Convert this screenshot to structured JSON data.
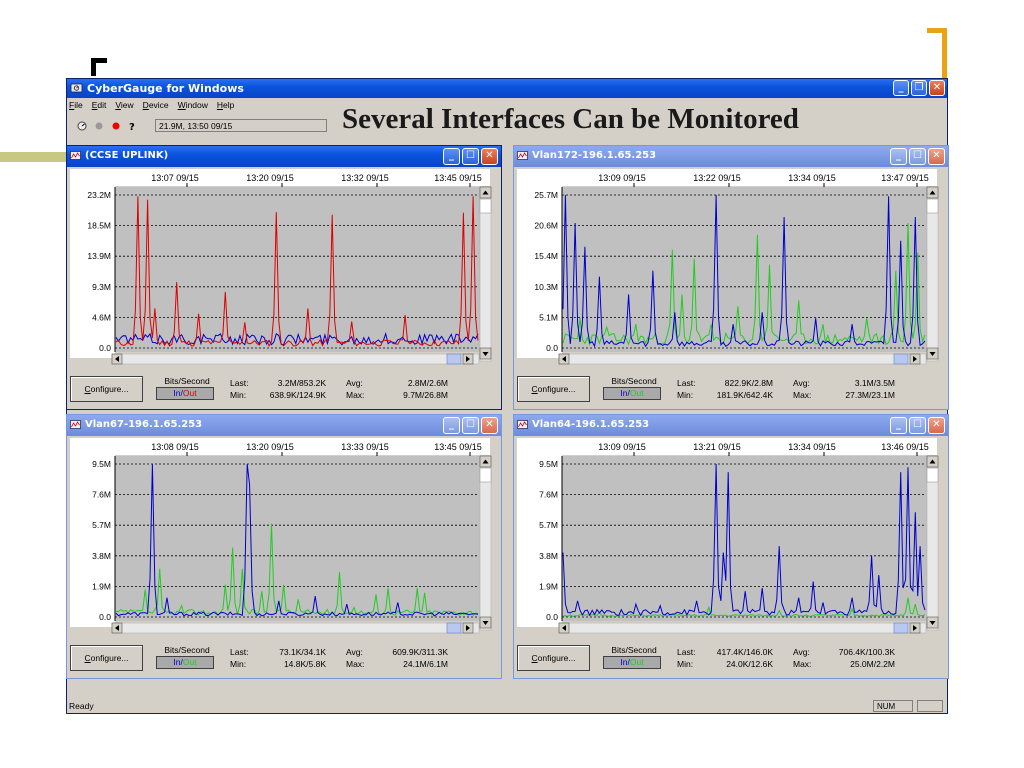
{
  "slide": {
    "headline": "Several Interfaces Can be Monitored",
    "deco_olive": "#c8c882",
    "deco_gold": "#e8a317"
  },
  "app": {
    "title": "CyberGauge for Windows",
    "menu": [
      "File",
      "Edit",
      "View",
      "Device",
      "Window",
      "Help"
    ],
    "toolbar_status": "21.9M, 13:50 09/15",
    "status_ready": "Ready",
    "status_num": "NUM"
  },
  "windows": [
    {
      "title": "(CCSE UPLINK)",
      "active": true,
      "times": [
        "13:07 09/15",
        "13:20 09/15",
        "13:32 09/15",
        "13:45 09/15"
      ],
      "yticks": [
        "23.2M",
        "18.5M",
        "13.9M",
        "9.3M",
        "4.6M",
        "0.0"
      ],
      "ymax": 23.2,
      "in_color": "#0000cc",
      "out_color": "#dd0000",
      "seed": 11,
      "in_spikes": [],
      "out_spikes": [
        [
          0.06,
          23.0
        ],
        [
          0.085,
          22.5
        ],
        [
          0.11,
          6.0
        ],
        [
          0.17,
          10.0
        ],
        [
          0.225,
          5.2
        ],
        [
          0.3,
          8.5
        ],
        [
          0.355,
          3.9
        ],
        [
          0.44,
          20.6
        ],
        [
          0.53,
          6.0
        ],
        [
          0.6,
          20.2
        ],
        [
          0.65,
          4.0
        ],
        [
          0.8,
          5.0
        ],
        [
          0.96,
          20.5
        ],
        [
          0.985,
          23.0
        ]
      ],
      "in_base": 1.4,
      "out_base": 0.8,
      "bits_label": "Bits/Second",
      "in_label": "In/",
      "out_label": "Out",
      "configure_label": "Configure...",
      "last_label": "Last:",
      "last_value": "3.2M/853.2K",
      "min_label": "Min:",
      "min_value": "638.9K/124.9K",
      "avg_label": "Avg:",
      "avg_value": "2.8M/2.6M",
      "max_label": "Max:",
      "max_value": "9.7M/26.8M"
    },
    {
      "title": "Vlan172-196.1.65.253",
      "active": false,
      "times": [
        "13:09 09/15",
        "13:22 09/15",
        "13:34 09/15",
        "13:47 09/15"
      ],
      "yticks": [
        "25.7M",
        "20.6M",
        "15.4M",
        "10.3M",
        "5.1M",
        "0.0"
      ],
      "ymax": 25.7,
      "in_color": "#0000cc",
      "out_color": "#22cc22",
      "seed": 23,
      "in_spikes": [
        [
          0.01,
          26.0
        ],
        [
          0.035,
          21.0
        ],
        [
          0.06,
          17.0
        ],
        [
          0.1,
          12.0
        ],
        [
          0.18,
          9.0
        ],
        [
          0.25,
          13.0
        ],
        [
          0.31,
          6.0
        ],
        [
          0.42,
          26.0
        ],
        [
          0.47,
          4.0
        ],
        [
          0.55,
          6.0
        ],
        [
          0.61,
          22.0
        ],
        [
          0.7,
          5.0
        ],
        [
          0.8,
          4.0
        ],
        [
          0.9,
          25.5
        ],
        [
          0.935,
          18.0
        ],
        [
          0.97,
          22.0
        ]
      ],
      "out_spikes": [
        [
          0.05,
          5.0
        ],
        [
          0.12,
          3.5
        ],
        [
          0.2,
          4.0
        ],
        [
          0.3,
          16.5
        ],
        [
          0.33,
          9.0
        ],
        [
          0.36,
          15.0
        ],
        [
          0.41,
          4.0
        ],
        [
          0.48,
          7.0
        ],
        [
          0.535,
          19.0
        ],
        [
          0.57,
          14.0
        ],
        [
          0.65,
          8.0
        ],
        [
          0.72,
          4.0
        ],
        [
          0.84,
          5.0
        ],
        [
          0.92,
          13.0
        ],
        [
          0.95,
          21.0
        ],
        [
          0.98,
          16.0
        ]
      ],
      "in_base": 0.8,
      "out_base": 1.6,
      "bits_label": "Bits/Second",
      "in_label": "In/",
      "out_label": "Out",
      "configure_label": "Configure...",
      "last_label": "Last:",
      "last_value": "822.9K/2.8M",
      "min_label": "Min:",
      "min_value": "181.9K/642.4K",
      "avg_label": "Avg:",
      "avg_value": "3.1M/3.5M",
      "max_label": "Max:",
      "max_value": "27.3M/23.1M"
    },
    {
      "title": "Vlan67-196.1.65.253",
      "active": false,
      "times": [
        "13:08 09/15",
        "13:20 09/15",
        "13:33 09/15",
        "13:45 09/15"
      ],
      "yticks": [
        "9.5M",
        "7.6M",
        "5.7M",
        "3.8M",
        "1.9M",
        "0.0"
      ],
      "ymax": 9.5,
      "in_color": "#0000cc",
      "out_color": "#22cc22",
      "seed": 37,
      "in_spikes": [
        [
          0.1,
          9.5
        ],
        [
          0.14,
          1.2
        ],
        [
          0.36,
          9.5
        ],
        [
          0.37,
          8.2
        ],
        [
          0.45,
          1.0
        ],
        [
          0.55,
          1.3
        ],
        [
          0.64,
          0.8
        ],
        [
          0.78,
          0.9
        ]
      ],
      "out_spikes": [
        [
          0.08,
          1.7
        ],
        [
          0.12,
          3.0
        ],
        [
          0.18,
          0.7
        ],
        [
          0.3,
          2.0
        ],
        [
          0.325,
          4.3
        ],
        [
          0.35,
          3.0
        ],
        [
          0.4,
          1.6
        ],
        [
          0.43,
          5.8
        ],
        [
          0.46,
          2.0
        ],
        [
          0.5,
          1.1
        ],
        [
          0.62,
          2.8
        ],
        [
          0.66,
          0.6
        ],
        [
          0.72,
          1.4
        ],
        [
          0.75,
          1.8
        ],
        [
          0.83,
          1.8
        ],
        [
          0.855,
          1.5
        ]
      ],
      "in_base": 0.2,
      "out_base": 0.3,
      "bits_label": "Bits/Second",
      "in_label": "In/",
      "out_label": "Out",
      "configure_label": "Configure...",
      "last_label": "Last:",
      "last_value": "73.1K/34.1K",
      "min_label": "Min:",
      "min_value": "14.8K/5.8K",
      "avg_label": "Avg:",
      "avg_value": "609.9K/311.3K",
      "max_label": "Max:",
      "max_value": "24.1M/6.1M"
    },
    {
      "title": "Vlan64-196.1.65.253",
      "active": false,
      "times": [
        "13:09 09/15",
        "13:21 09/15",
        "13:34 09/15",
        "13:46 09/15"
      ],
      "yticks": [
        "9.5M",
        "7.6M",
        "5.7M",
        "3.8M",
        "1.9M",
        "0.0"
      ],
      "ymax": 9.5,
      "in_color": "#0000cc",
      "out_color": "#22cc22",
      "seed": 51,
      "in_spikes": [
        [
          0.0,
          4.0
        ],
        [
          0.04,
          1.0
        ],
        [
          0.2,
          0.8
        ],
        [
          0.27,
          0.7
        ],
        [
          0.37,
          1.0
        ],
        [
          0.42,
          9.5
        ],
        [
          0.44,
          4.0
        ],
        [
          0.455,
          9.0
        ],
        [
          0.5,
          1.6
        ],
        [
          0.55,
          1.8
        ],
        [
          0.6,
          4.4
        ],
        [
          0.65,
          1.2
        ],
        [
          0.69,
          2.2
        ],
        [
          0.72,
          0.9
        ],
        [
          0.8,
          1.2
        ],
        [
          0.855,
          3.8
        ],
        [
          0.875,
          2.6
        ],
        [
          0.93,
          9.0
        ],
        [
          0.955,
          9.3
        ],
        [
          0.97,
          6.5
        ],
        [
          0.985,
          4.4
        ]
      ],
      "out_spikes": [
        [
          0.1,
          0.3
        ],
        [
          0.4,
          0.6
        ],
        [
          0.6,
          0.4
        ],
        [
          0.8,
          0.5
        ],
        [
          0.95,
          1.2
        ],
        [
          0.975,
          0.8
        ]
      ],
      "in_base": 0.3,
      "out_base": 0.1,
      "bits_label": "Bits/Second",
      "in_label": "In/",
      "out_label": "Out",
      "configure_label": "Configure...",
      "last_label": "Last:",
      "last_value": "417.4K/146.0K",
      "min_label": "Min:",
      "min_value": "24.0K/12.6K",
      "avg_label": "Avg:",
      "avg_value": "706.4K/100.3K",
      "max_label": "Max:",
      "max_value": "25.0M/2.2M"
    }
  ]
}
